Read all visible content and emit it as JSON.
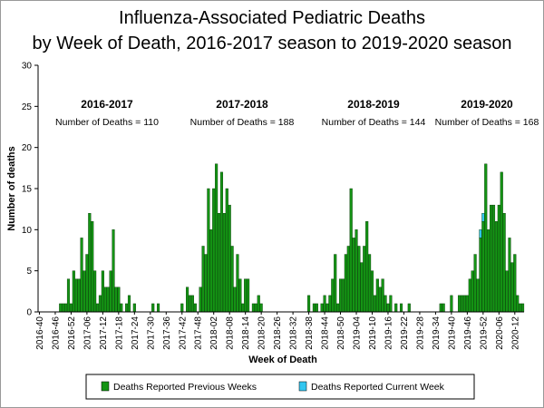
{
  "chart_data": {
    "type": "bar",
    "stacked": true,
    "title": [
      "Influenza-Associated Pediatric Deaths",
      "by Week of Death, 2016-2017 season to 2019-2020 season"
    ],
    "x_label": "Week of Death",
    "y_label": "Number of deaths",
    "ylim": [
      0,
      30
    ],
    "yticks": [
      0,
      5,
      10,
      15,
      20,
      25,
      30
    ],
    "grid": false,
    "legend": "bottom",
    "seasons": [
      {
        "name": "2016-2017",
        "note": "Number of Deaths = 110"
      },
      {
        "name": "2017-2018",
        "note": "Number of Deaths = 188"
      },
      {
        "name": "2018-2019",
        "note": "Number of Deaths = 144"
      },
      {
        "name": "2019-2020",
        "note": "Number of Deaths = 168"
      }
    ],
    "categories": [
      "2016-40",
      null,
      null,
      null,
      null,
      null,
      "2016-46",
      null,
      null,
      null,
      null,
      null,
      "2016-52",
      null,
      null,
      null,
      null,
      null,
      "2017-06",
      null,
      null,
      null,
      null,
      null,
      "2017-12",
      null,
      null,
      null,
      null,
      null,
      "2017-18",
      null,
      null,
      null,
      null,
      null,
      "2017-24",
      null,
      null,
      null,
      null,
      null,
      "2017-30",
      null,
      null,
      null,
      null,
      null,
      "2017-36",
      null,
      null,
      null,
      null,
      null,
      "2017-42",
      null,
      null,
      null,
      null,
      null,
      "2017-48",
      null,
      null,
      null,
      null,
      null,
      "2018-02",
      null,
      null,
      null,
      null,
      null,
      "2018-08",
      null,
      null,
      null,
      null,
      null,
      "2018-14",
      null,
      null,
      null,
      null,
      null,
      "2018-20",
      null,
      null,
      null,
      null,
      null,
      "2018-26",
      null,
      null,
      null,
      null,
      null,
      "2018-32",
      null,
      null,
      null,
      null,
      null,
      "2018-38",
      null,
      null,
      null,
      null,
      null,
      "2018-44",
      null,
      null,
      null,
      null,
      null,
      "2018-50",
      null,
      null,
      null,
      null,
      null,
      "2019-04",
      null,
      null,
      null,
      null,
      null,
      "2019-10",
      null,
      null,
      null,
      null,
      null,
      "2019-16",
      null,
      null,
      null,
      null,
      null,
      "2019-22",
      null,
      null,
      null,
      null,
      null,
      "2019-28",
      null,
      null,
      null,
      null,
      null,
      "2019-34",
      null,
      null,
      null,
      null,
      null,
      "2019-40",
      null,
      null,
      null,
      null,
      null,
      "2019-46",
      null,
      null,
      null,
      null,
      null,
      "2019-52",
      null,
      null,
      null,
      null,
      null,
      "2020-06",
      null,
      null,
      null,
      null,
      null,
      "2020-12",
      null,
      null,
      null
    ],
    "series": [
      {
        "name": "Deaths Reported Previous Weeks",
        "color": "#149414",
        "values": [
          0,
          0,
          0,
          0,
          0,
          0,
          0,
          0,
          1,
          1,
          1,
          4,
          1,
          5,
          4,
          4,
          9,
          5,
          7,
          12,
          11,
          5,
          1,
          2,
          5,
          3,
          3,
          5,
          10,
          3,
          3,
          1,
          0,
          1,
          2,
          0,
          1,
          0,
          0,
          0,
          0,
          0,
          0,
          1,
          0,
          1,
          0,
          0,
          0,
          0,
          0,
          0,
          0,
          0,
          1,
          0,
          3,
          2,
          2,
          1,
          0,
          3,
          8,
          7,
          15,
          10,
          15,
          18,
          12,
          17,
          12,
          15,
          13,
          8,
          3,
          7,
          4,
          1,
          4,
          4,
          0,
          1,
          1,
          2,
          1,
          0,
          0,
          0,
          0,
          0,
          0,
          0,
          0,
          0,
          0,
          0,
          0,
          0,
          0,
          0,
          0,
          0,
          2,
          0,
          1,
          1,
          0,
          1,
          2,
          1,
          2,
          4,
          7,
          1,
          4,
          4,
          7,
          8,
          15,
          9,
          10,
          8,
          6,
          8,
          11,
          7,
          5,
          2,
          4,
          3,
          4,
          2,
          1,
          2,
          0,
          1,
          0,
          1,
          0,
          0,
          1,
          0,
          0,
          0,
          0,
          0,
          0,
          0,
          0,
          0,
          0,
          0,
          1,
          1,
          0,
          0,
          2,
          0,
          0,
          2,
          2,
          2,
          2,
          4,
          5,
          7,
          4,
          9,
          11,
          18,
          10,
          13,
          13,
          11,
          13,
          17,
          12,
          5,
          9,
          6,
          7,
          2,
          1,
          1
        ]
      },
      {
        "name": "Deaths Reported Current Week",
        "color": "#33c6f0",
        "values": [
          0,
          0,
          0,
          0,
          0,
          0,
          0,
          0,
          0,
          0,
          0,
          0,
          0,
          0,
          0,
          0,
          0,
          0,
          0,
          0,
          0,
          0,
          0,
          0,
          0,
          0,
          0,
          0,
          0,
          0,
          0,
          0,
          0,
          0,
          0,
          0,
          0,
          0,
          0,
          0,
          0,
          0,
          0,
          0,
          0,
          0,
          0,
          0,
          0,
          0,
          0,
          0,
          0,
          0,
          0,
          0,
          0,
          0,
          0,
          0,
          0,
          0,
          0,
          0,
          0,
          0,
          0,
          0,
          0,
          0,
          0,
          0,
          0,
          0,
          0,
          0,
          0,
          0,
          0,
          0,
          0,
          0,
          0,
          0,
          0,
          0,
          0,
          0,
          0,
          0,
          0,
          0,
          0,
          0,
          0,
          0,
          0,
          0,
          0,
          0,
          0,
          0,
          0,
          0,
          0,
          0,
          0,
          0,
          0,
          0,
          0,
          0,
          0,
          0,
          0,
          0,
          0,
          0,
          0,
          0,
          0,
          0,
          0,
          0,
          0,
          0,
          0,
          0,
          0,
          0,
          0,
          0,
          0,
          0,
          0,
          0,
          0,
          0,
          0,
          0,
          0,
          0,
          0,
          0,
          0,
          0,
          0,
          0,
          0,
          0,
          0,
          0,
          0,
          0,
          0,
          0,
          0,
          0,
          0,
          0,
          0,
          0,
          0,
          0,
          0,
          0,
          0,
          1,
          1,
          0,
          0,
          0,
          0,
          0,
          0,
          0,
          0,
          0,
          0,
          0,
          0,
          0,
          0,
          0
        ]
      }
    ]
  }
}
